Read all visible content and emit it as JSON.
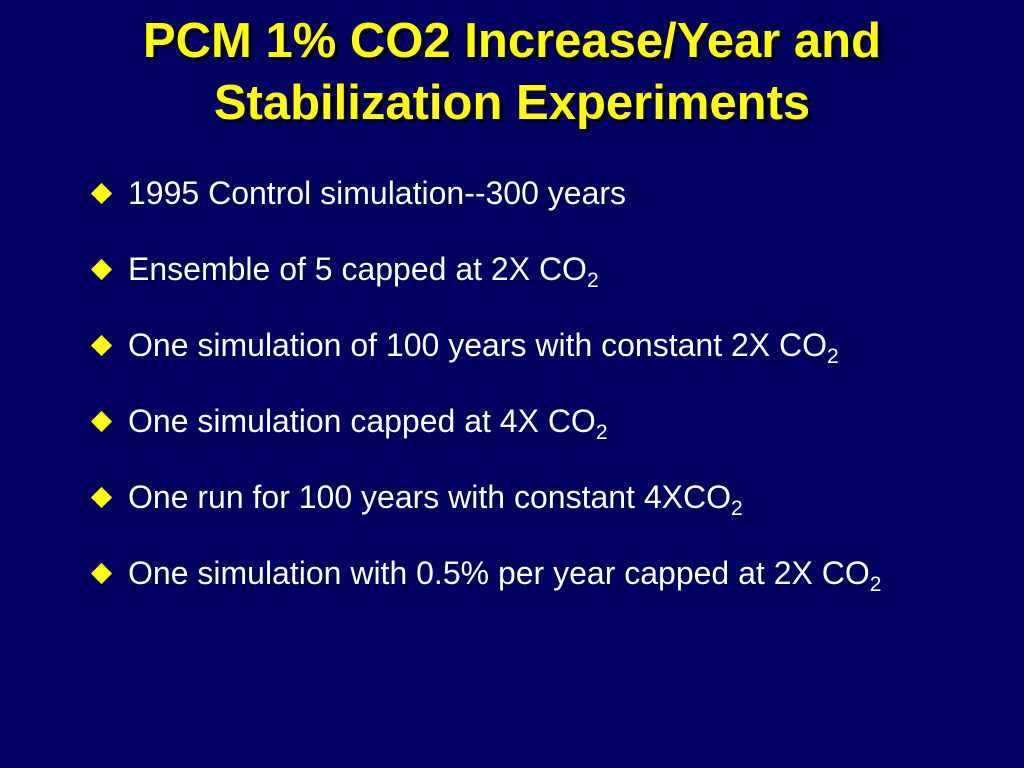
{
  "slide": {
    "title_line1": "PCM 1% CO2 Increase/Year and",
    "title_line2": "Stabilization Experiments",
    "bullets": [
      {
        "text": "1995 Control simulation--300 years",
        "sub": ""
      },
      {
        "text": "Ensemble of 5 capped at 2X CO",
        "sub": "2"
      },
      {
        "text": "One simulation of 100 years with constant 2X CO",
        "sub": "2"
      },
      {
        "text": "One simulation capped at 4X CO",
        "sub": "2"
      },
      {
        "text": "One run for 100 years with constant 4XCO",
        "sub": "2"
      },
      {
        "text": "One simulation with 0.5% per year capped at 2X CO",
        "sub": "2"
      }
    ]
  },
  "colors": {
    "background": "#00005e",
    "title": "#ffff00",
    "bullet_marker": "#ffff00",
    "text": "#ffffff"
  },
  "icons": {
    "bullet_marker": "diamond-bullet-icon"
  }
}
